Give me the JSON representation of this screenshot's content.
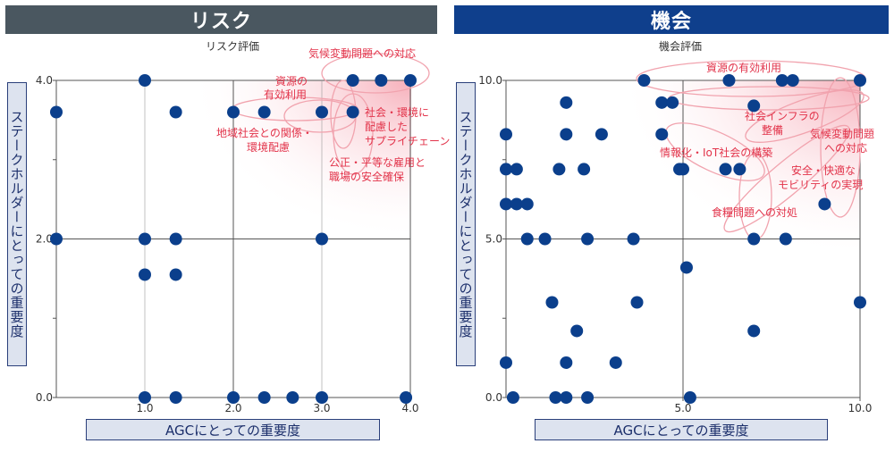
{
  "panels": {
    "risk": {
      "header": "リスク",
      "title": "リスク評価",
      "ylabel": "ステークホルダーにとっての重要度",
      "xlabel": "AGCにとっての重要度"
    },
    "opp": {
      "header": "機会",
      "title": "機会評価",
      "ylabel": "ステークホルダーにとっての重要度",
      "xlabel": "AGCにとっての重要度"
    }
  },
  "colors": {
    "point": "#0b3f8c",
    "annotation": "#e2334a",
    "grid": "#555555",
    "highlight": "#f7b8c1"
  },
  "chart_data": [
    {
      "type": "scatter",
      "title": "リスク評価",
      "xlabel": "AGCにとっての重要度",
      "ylabel": "ステークホルダーにとっての重要度",
      "xlim": [
        0,
        4
      ],
      "ylim": [
        0,
        4
      ],
      "xticks": [
        1.0,
        2.0,
        3.0,
        4.0
      ],
      "xtick_labels": [
        "1.0",
        "2.0",
        "3.0",
        "4.0"
      ],
      "yticks": [
        0,
        2,
        4
      ],
      "ytick_labels": [
        "0.0",
        "2.0",
        "4.0"
      ],
      "grid": true,
      "points": [
        [
          1.0,
          4.0
        ],
        [
          3.35,
          4.0
        ],
        [
          3.67,
          4.0
        ],
        [
          4.0,
          4.0
        ],
        [
          0.0,
          3.6
        ],
        [
          1.35,
          3.6
        ],
        [
          2.0,
          3.6
        ],
        [
          2.35,
          3.6
        ],
        [
          3.0,
          3.6
        ],
        [
          3.35,
          3.6
        ],
        [
          0.0,
          2.0
        ],
        [
          1.0,
          2.0
        ],
        [
          1.35,
          2.0
        ],
        [
          3.0,
          2.0
        ],
        [
          1.0,
          1.55
        ],
        [
          1.35,
          1.55
        ],
        [
          1.0,
          0.0
        ],
        [
          1.35,
          0.0
        ],
        [
          2.0,
          0.0
        ],
        [
          2.35,
          0.0
        ],
        [
          2.67,
          0.0
        ],
        [
          3.0,
          0.0
        ],
        [
          3.95,
          0.0
        ]
      ],
      "annotations": [
        "気候変動問題への対応",
        "資源の有効利用",
        "地域社会との関係・環境配慮",
        "社会・環境に配慮したサプライチェーン",
        "公正・平等な雇用と職場の安全確保"
      ]
    },
    {
      "type": "scatter",
      "title": "機会評価",
      "xlabel": "AGCにとっての重要度",
      "ylabel": "ステークホルダーにとっての重要度",
      "xlim": [
        0,
        10
      ],
      "ylim": [
        0,
        10
      ],
      "xticks": [
        5.0,
        10.0
      ],
      "xtick_labels": [
        "5.0",
        "10.0"
      ],
      "yticks": [
        0,
        5,
        10
      ],
      "ytick_labels": [
        "0.0",
        "5.0",
        "10.0"
      ],
      "grid": true,
      "points": [
        [
          3.9,
          10.0
        ],
        [
          6.3,
          10.0
        ],
        [
          7.8,
          10.0
        ],
        [
          8.1,
          10.0
        ],
        [
          10.0,
          10.0
        ],
        [
          1.7,
          9.3
        ],
        [
          4.4,
          9.3
        ],
        [
          4.7,
          9.3
        ],
        [
          7.0,
          9.2
        ],
        [
          0.0,
          8.3
        ],
        [
          1.7,
          8.3
        ],
        [
          2.7,
          8.3
        ],
        [
          4.4,
          8.3
        ],
        [
          0.0,
          7.2
        ],
        [
          0.3,
          7.2
        ],
        [
          1.5,
          7.2
        ],
        [
          2.2,
          7.2
        ],
        [
          4.9,
          7.2
        ],
        [
          5.0,
          7.2
        ],
        [
          6.2,
          7.2
        ],
        [
          6.6,
          7.2
        ],
        [
          0.0,
          6.1
        ],
        [
          0.3,
          6.1
        ],
        [
          0.6,
          6.1
        ],
        [
          9.0,
          6.1
        ],
        [
          0.6,
          5.0
        ],
        [
          1.1,
          5.0
        ],
        [
          2.3,
          5.0
        ],
        [
          3.6,
          5.0
        ],
        [
          7.0,
          5.0
        ],
        [
          7.9,
          5.0
        ],
        [
          5.1,
          4.1
        ],
        [
          1.3,
          3.0
        ],
        [
          3.7,
          3.0
        ],
        [
          10.0,
          3.0
        ],
        [
          2.0,
          2.1
        ],
        [
          7.0,
          2.1
        ],
        [
          0.0,
          1.1
        ],
        [
          1.7,
          1.1
        ],
        [
          3.1,
          1.1
        ],
        [
          0.2,
          0.0
        ],
        [
          1.4,
          0.0
        ],
        [
          1.7,
          0.0
        ],
        [
          2.3,
          0.0
        ],
        [
          5.2,
          0.0
        ]
      ],
      "annotations": [
        "資源の有効利用",
        "社会インフラの整備",
        "気候変動問題への対応",
        "情報化・IoT社会の構築",
        "安全・快適なモビリティの実現",
        "食糧問題への対処"
      ]
    }
  ]
}
